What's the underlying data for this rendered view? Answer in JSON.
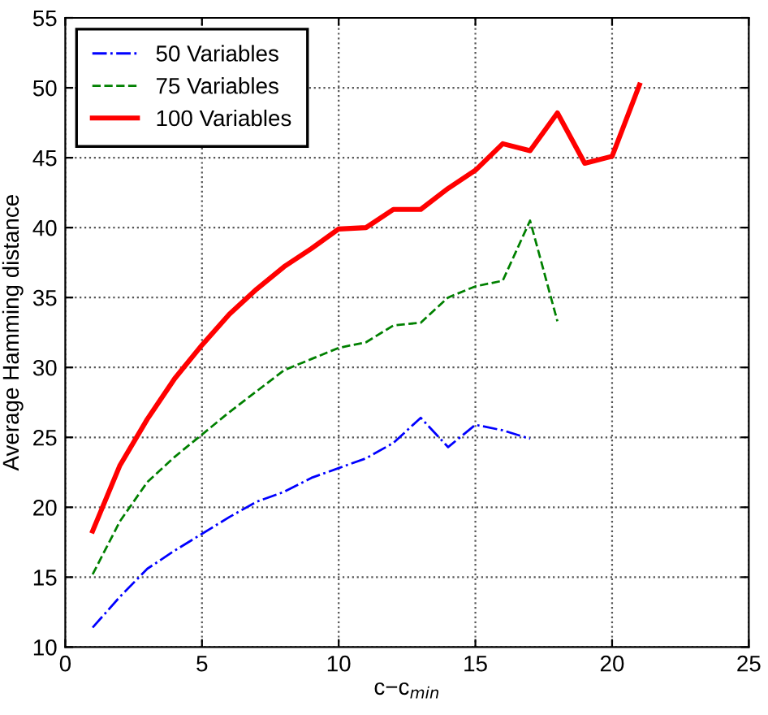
{
  "chart_data": {
    "type": "line",
    "xlabel": "c−c$_{min}$",
    "ylabel": "Average Hamming distance",
    "xlim": [
      0,
      25
    ],
    "xticks": [
      0,
      5,
      10,
      15,
      20,
      25
    ],
    "ylim": [
      10,
      55
    ],
    "yticks": [
      10,
      15,
      20,
      25,
      30,
      35,
      40,
      45,
      50,
      55
    ],
    "grid": true,
    "legend": "top left",
    "series": [
      {
        "name": "50 Variables",
        "color": "#0000ff",
        "line_style": "dashdot",
        "x": [
          1,
          2,
          3,
          4,
          5,
          6,
          7,
          8,
          9,
          10,
          11,
          12,
          13,
          14,
          15,
          16,
          17
        ],
        "values": [
          11.4,
          13.6,
          15.6,
          16.9,
          18.1,
          19.3,
          20.4,
          21.1,
          22.1,
          22.8,
          23.5,
          24.6,
          26.4,
          24.3,
          25.9,
          25.5,
          24.9
        ]
      },
      {
        "name": "75 Variables",
        "color": "#008000",
        "line_style": "dashed",
        "x": [
          1,
          2,
          3,
          4,
          5,
          6,
          7,
          8,
          9,
          10,
          11,
          12,
          13,
          14,
          15,
          16,
          17,
          18
        ],
        "values": [
          15.2,
          19,
          21.8,
          23.6,
          25.2,
          26.8,
          28.3,
          29.8,
          30.6,
          31.4,
          31.8,
          33.0,
          33.2,
          35,
          35.8,
          36.2,
          40.5,
          33.3
        ]
      },
      {
        "name": "100 Variables",
        "color": "#ff0000",
        "line_style": "solid",
        "x": [
          1,
          2,
          3,
          4,
          5,
          6,
          7,
          8,
          9,
          10,
          11,
          12,
          13,
          14,
          15,
          16,
          17,
          18,
          19,
          20,
          21
        ],
        "values": [
          18.3,
          23,
          26.3,
          29.2,
          31.6,
          33.8,
          35.6,
          37.2,
          38.5,
          39.9,
          40.0,
          41.3,
          41.3,
          42.8,
          44.1,
          46,
          45.5,
          48.2,
          44.6,
          45.1,
          50.2
        ]
      }
    ]
  }
}
